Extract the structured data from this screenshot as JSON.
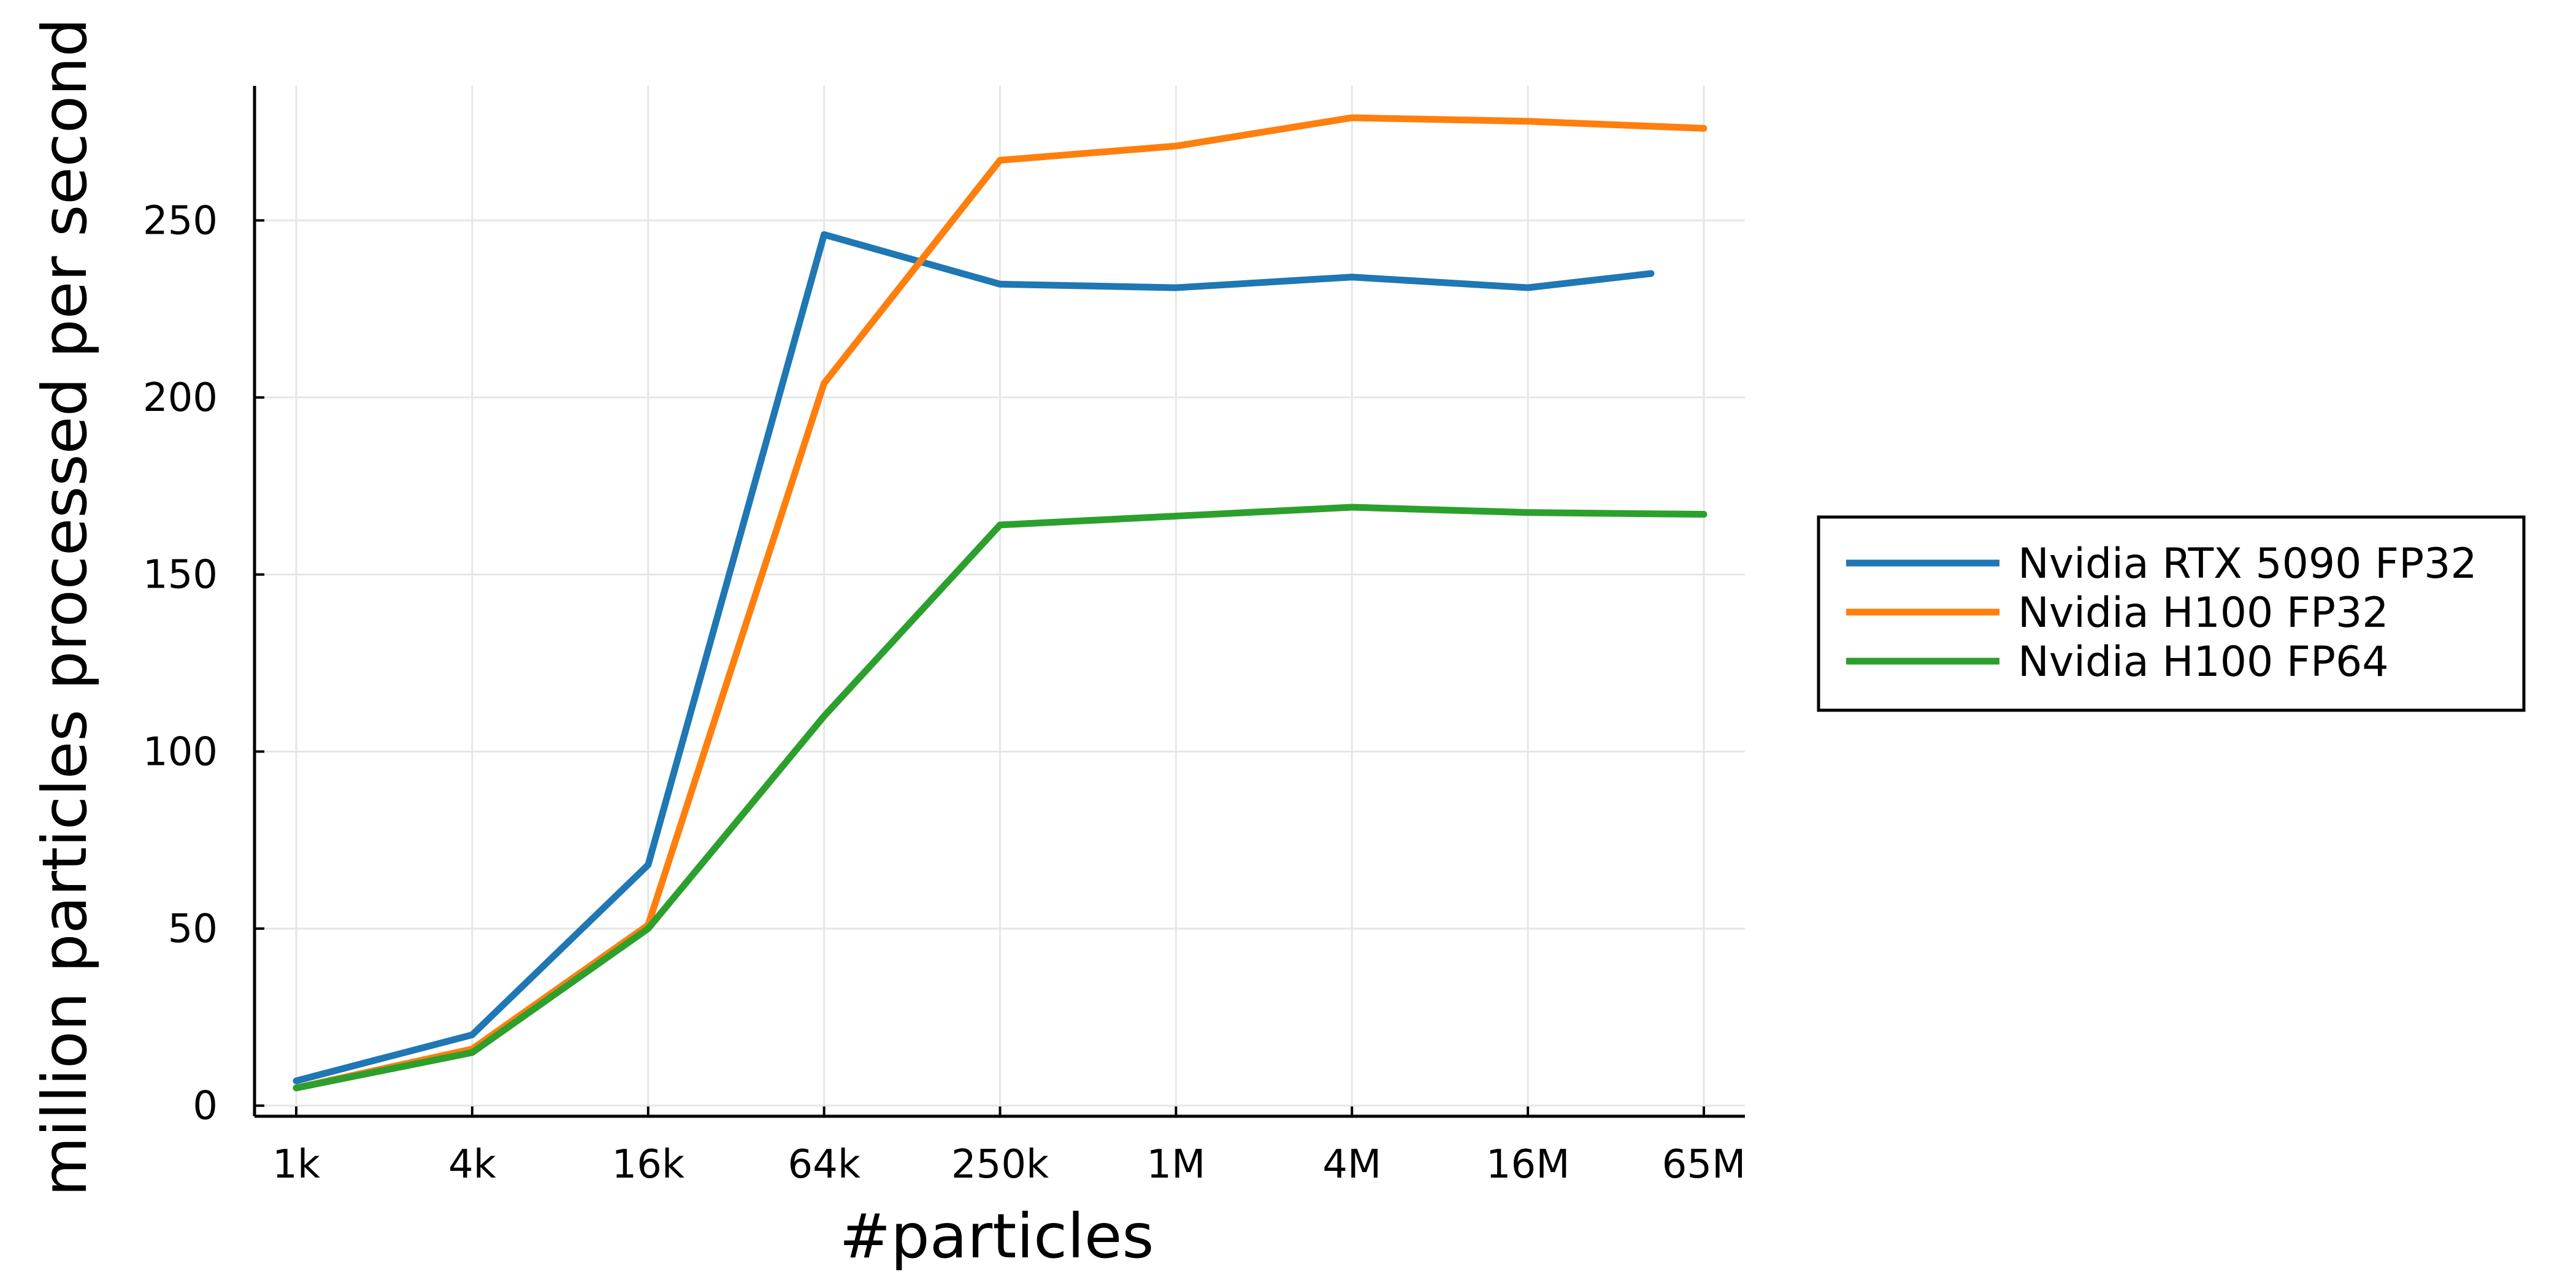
{
  "chart_data": {
    "type": "line",
    "xlabel": "#particles",
    "ylabel": "million particles processed per second",
    "x_scale": "log",
    "categories": [
      "1k",
      "4k",
      "16k",
      "64k",
      "250k",
      "1M",
      "4M",
      "16M",
      "65M"
    ],
    "yticks": [
      0,
      50,
      100,
      150,
      200,
      250
    ],
    "ylim": [
      -3,
      288
    ],
    "grid": true,
    "legend_position": "outside-right",
    "series": [
      {
        "name": "Nvidia RTX 5090 FP32",
        "color": "#1f77b4",
        "x": [
          1,
          2,
          3,
          4,
          5,
          6,
          7,
          8,
          8.7
        ],
        "values": [
          7,
          20,
          68,
          246,
          232,
          231,
          234,
          231,
          235
        ]
      },
      {
        "name": "Nvidia H100 FP32",
        "color": "#ff7f0e",
        "x": [
          1,
          2,
          3,
          4,
          5,
          6,
          7,
          8,
          9
        ],
        "values": [
          5,
          16,
          51,
          204,
          267,
          271,
          279,
          278,
          276
        ]
      },
      {
        "name": "Nvidia H100 FP64",
        "color": "#2ca02c",
        "x": [
          1,
          2,
          3,
          4,
          5,
          6,
          7,
          8,
          9
        ],
        "values": [
          5,
          15,
          50,
          110,
          164,
          166.5,
          169,
          167.5,
          167
        ]
      }
    ]
  }
}
